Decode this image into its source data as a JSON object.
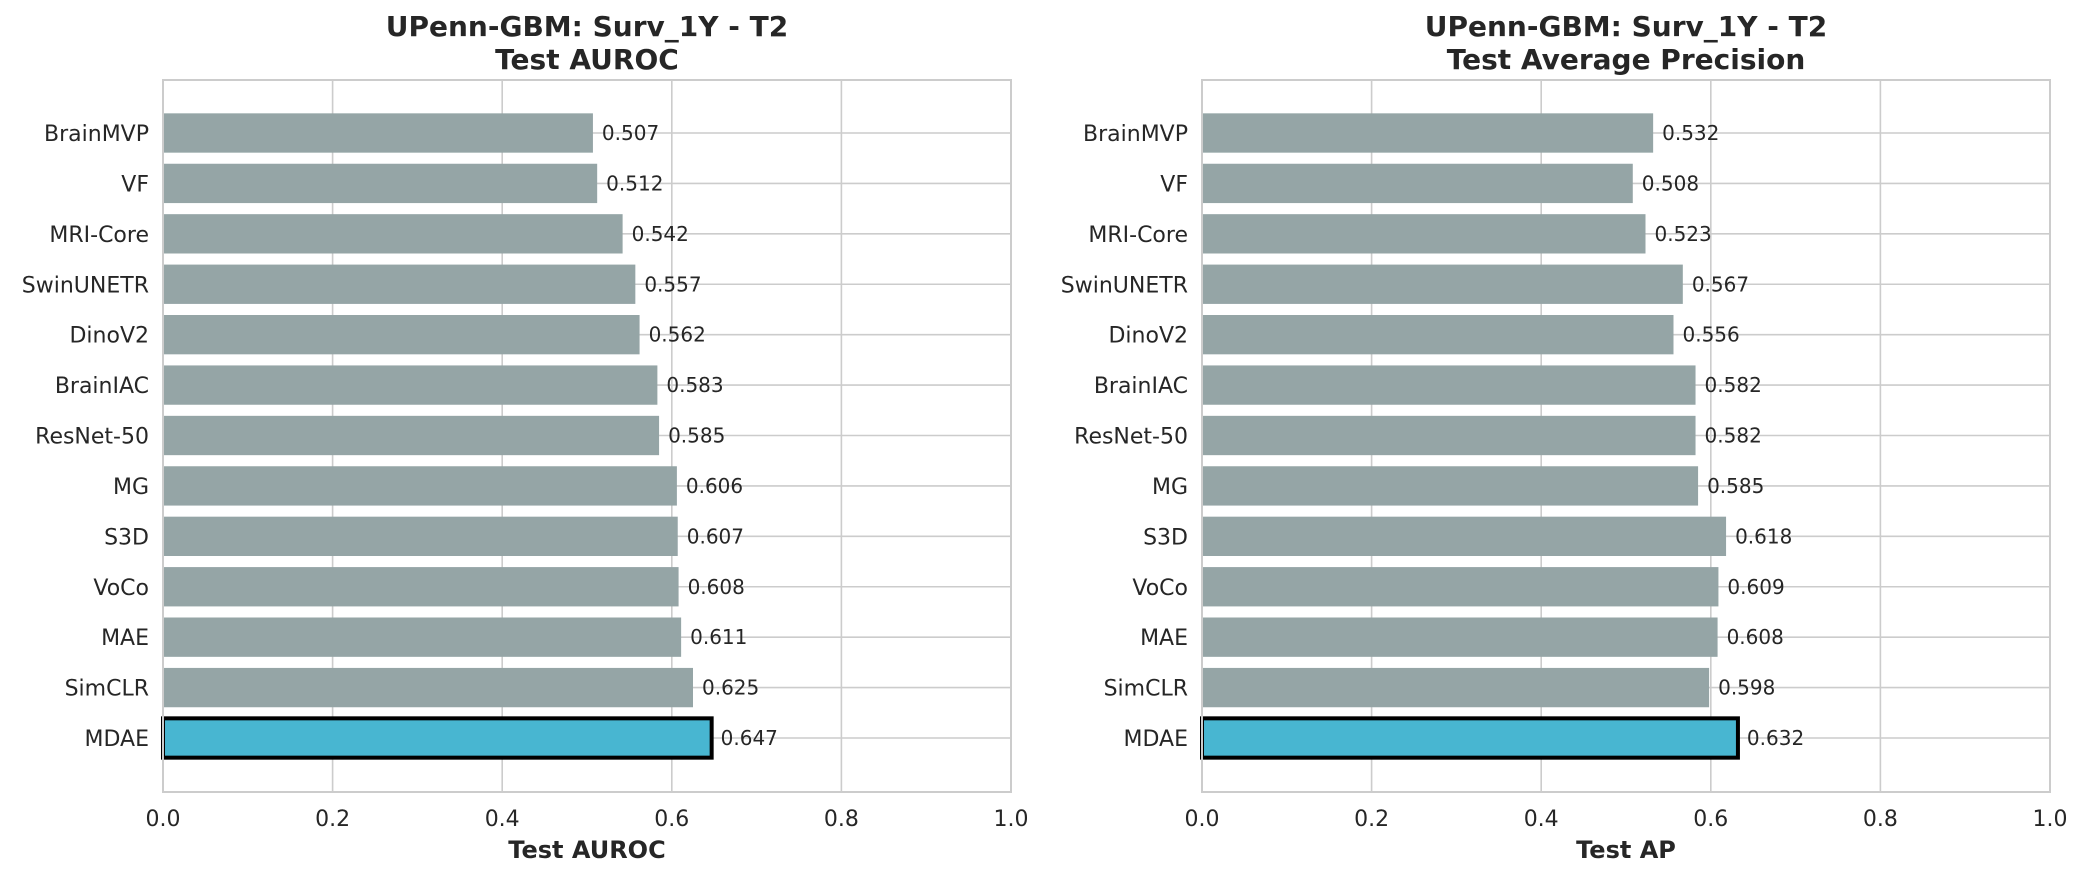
{
  "colors": {
    "default_bar": "#95a5a6",
    "highlight_bar": "#48b6d1",
    "highlight_edge": "#000000",
    "grid": "#cccccc",
    "text": "#262626"
  },
  "chart_data": [
    {
      "type": "bar",
      "orientation": "horizontal",
      "title": "UPenn-GBM: Surv_1Y - T2",
      "subtitle": "Test AUROC",
      "xlabel": "Test AUROC",
      "ylabel": "",
      "xlim": [
        0,
        1
      ],
      "xticks": [
        "0.0",
        "0.2",
        "0.4",
        "0.6",
        "0.8",
        "1.0"
      ],
      "grid": true,
      "highlight": "MDAE",
      "categories": [
        "BrainMVP",
        "VF",
        "MRI-Core",
        "SwinUNETR",
        "DinoV2",
        "BrainIAC",
        "ResNet-50",
        "MG",
        "S3D",
        "VoCo",
        "MAE",
        "SimCLR",
        "MDAE"
      ],
      "values": [
        0.507,
        0.512,
        0.542,
        0.557,
        0.562,
        0.583,
        0.585,
        0.606,
        0.607,
        0.608,
        0.611,
        0.625,
        0.647
      ],
      "value_labels": [
        "0.507",
        "0.512",
        "0.542",
        "0.557",
        "0.562",
        "0.583",
        "0.585",
        "0.606",
        "0.607",
        "0.608",
        "0.611",
        "0.625",
        "0.647"
      ]
    },
    {
      "type": "bar",
      "orientation": "horizontal",
      "title": "UPenn-GBM: Surv_1Y - T2",
      "subtitle": "Test Average Precision",
      "xlabel": "Test AP",
      "ylabel": "",
      "xlim": [
        0,
        1
      ],
      "xticks": [
        "0.0",
        "0.2",
        "0.4",
        "0.6",
        "0.8",
        "1.0"
      ],
      "grid": true,
      "highlight": "MDAE",
      "categories": [
        "BrainMVP",
        "VF",
        "MRI-Core",
        "SwinUNETR",
        "DinoV2",
        "BrainIAC",
        "ResNet-50",
        "MG",
        "S3D",
        "VoCo",
        "MAE",
        "SimCLR",
        "MDAE"
      ],
      "values": [
        0.532,
        0.508,
        0.523,
        0.567,
        0.556,
        0.582,
        0.582,
        0.585,
        0.618,
        0.609,
        0.608,
        0.598,
        0.632
      ],
      "value_labels": [
        "0.532",
        "0.508",
        "0.523",
        "0.567",
        "0.556",
        "0.582",
        "0.582",
        "0.585",
        "0.618",
        "0.609",
        "0.608",
        "0.598",
        "0.632"
      ]
    }
  ]
}
